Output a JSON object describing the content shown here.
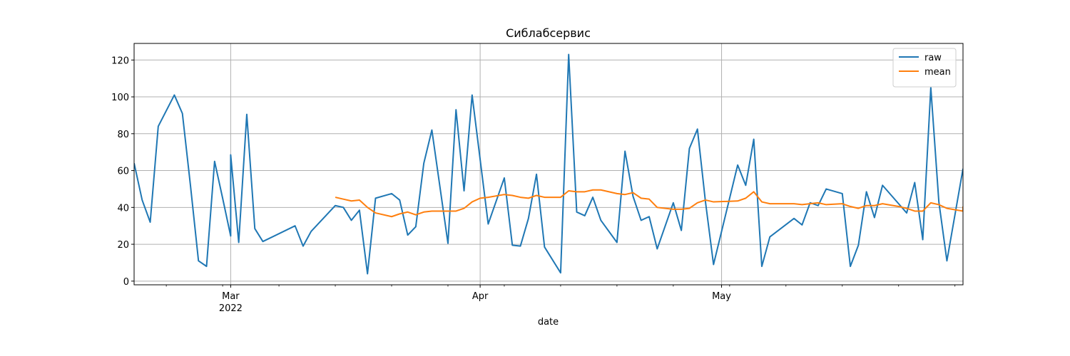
{
  "chart_data": {
    "type": "line",
    "title": "Сиблабсервис",
    "xlabel": "date",
    "ylabel": "",
    "ylim": [
      -2,
      129
    ],
    "xlim": [
      "2022-02-17",
      "2022-05-31"
    ],
    "yticks": [
      0,
      20,
      40,
      60,
      80,
      100,
      120
    ],
    "xticks": [
      {
        "date": "2022-03-01",
        "label": "Mar",
        "sublabel": "2022"
      },
      {
        "date": "2022-04-01",
        "label": "Apr",
        "sublabel": ""
      },
      {
        "date": "2022-05-01",
        "label": "May",
        "sublabel": ""
      }
    ],
    "grid": true,
    "legend_position": "top-right",
    "series": [
      {
        "name": "raw",
        "color": "#1f77b4",
        "points": [
          [
            "2022-02-17",
            64
          ],
          [
            "2022-02-18",
            44
          ],
          [
            "2022-02-19",
            32
          ],
          [
            "2022-02-20",
            84
          ],
          [
            "2022-02-22",
            101
          ],
          [
            "2022-02-23",
            91
          ],
          [
            "2022-02-24",
            52
          ],
          [
            "2022-02-25",
            11
          ],
          [
            "2022-02-26",
            8
          ],
          [
            "2022-02-27",
            65
          ],
          [
            "2022-02-28",
            45
          ],
          [
            "2022-03-01",
            24.5
          ],
          [
            "2022-03-01",
            68.5
          ],
          [
            "2022-03-02",
            21
          ],
          [
            "2022-03-03",
            90.5
          ],
          [
            "2022-03-04",
            28.5
          ],
          [
            "2022-03-05",
            21.5
          ],
          [
            "2022-03-09",
            30
          ],
          [
            "2022-03-10",
            19
          ],
          [
            "2022-03-11",
            27
          ],
          [
            "2022-03-14",
            41
          ],
          [
            "2022-03-15",
            40
          ],
          [
            "2022-03-16",
            33
          ],
          [
            "2022-03-17",
            38.5
          ],
          [
            "2022-03-18",
            4
          ],
          [
            "2022-03-19",
            45
          ],
          [
            "2022-03-21",
            47.5
          ],
          [
            "2022-03-22",
            44
          ],
          [
            "2022-03-23",
            25
          ],
          [
            "2022-03-24",
            29.5
          ],
          [
            "2022-03-25",
            64
          ],
          [
            "2022-03-26",
            82
          ],
          [
            "2022-03-28",
            20.5
          ],
          [
            "2022-03-29",
            93
          ],
          [
            "2022-03-30",
            49
          ],
          [
            "2022-03-31",
            101
          ],
          [
            "2022-04-02",
            31
          ],
          [
            "2022-04-04",
            56
          ],
          [
            "2022-04-05",
            19.5
          ],
          [
            "2022-04-06",
            19
          ],
          [
            "2022-04-07",
            34
          ],
          [
            "2022-04-08",
            58
          ],
          [
            "2022-04-09",
            18.5
          ],
          [
            "2022-04-11",
            4.5
          ],
          [
            "2022-04-12",
            123
          ],
          [
            "2022-04-13",
            37.5
          ],
          [
            "2022-04-14",
            35.5
          ],
          [
            "2022-04-15",
            45.5
          ],
          [
            "2022-04-16",
            33
          ],
          [
            "2022-04-18",
            21
          ],
          [
            "2022-04-19",
            70.5
          ],
          [
            "2022-04-20",
            46
          ],
          [
            "2022-04-21",
            33
          ],
          [
            "2022-04-22",
            35
          ],
          [
            "2022-04-23",
            17.5
          ],
          [
            "2022-04-25",
            42.5
          ],
          [
            "2022-04-26",
            27.5
          ],
          [
            "2022-04-27",
            72
          ],
          [
            "2022-04-28",
            82.5
          ],
          [
            "2022-04-29",
            43
          ],
          [
            "2022-04-30",
            9
          ],
          [
            "2022-05-03",
            63
          ],
          [
            "2022-05-04",
            52
          ],
          [
            "2022-05-05",
            77
          ],
          [
            "2022-05-06",
            8
          ],
          [
            "2022-05-07",
            24
          ],
          [
            "2022-05-10",
            34
          ],
          [
            "2022-05-11",
            30.5
          ],
          [
            "2022-05-12",
            42.5
          ],
          [
            "2022-05-13",
            41
          ],
          [
            "2022-05-14",
            50
          ],
          [
            "2022-05-16",
            47.5
          ],
          [
            "2022-05-17",
            8
          ],
          [
            "2022-05-18",
            19.5
          ],
          [
            "2022-05-19",
            48.5
          ],
          [
            "2022-05-20",
            34.5
          ],
          [
            "2022-05-21",
            52
          ],
          [
            "2022-05-23",
            42
          ],
          [
            "2022-05-24",
            37
          ],
          [
            "2022-05-25",
            53.5
          ],
          [
            "2022-05-26",
            22.5
          ],
          [
            "2022-05-27",
            105
          ],
          [
            "2022-05-28",
            43
          ],
          [
            "2022-05-29",
            11
          ],
          [
            "2022-05-31",
            61
          ]
        ]
      },
      {
        "name": "mean",
        "color": "#ff7f0e",
        "points": [
          [
            "2022-03-14",
            45.5
          ],
          [
            "2022-03-15",
            44.5
          ],
          [
            "2022-03-16",
            43.5
          ],
          [
            "2022-03-17",
            44
          ],
          [
            "2022-03-18",
            40
          ],
          [
            "2022-03-19",
            37
          ],
          [
            "2022-03-21",
            35
          ],
          [
            "2022-03-22",
            36.5
          ],
          [
            "2022-03-23",
            37.5
          ],
          [
            "2022-03-24",
            36
          ],
          [
            "2022-03-25",
            37.5
          ],
          [
            "2022-03-26",
            38
          ],
          [
            "2022-03-28",
            38
          ],
          [
            "2022-03-29",
            38
          ],
          [
            "2022-03-30",
            39.5
          ],
          [
            "2022-03-31",
            43
          ],
          [
            "2022-04-01",
            45
          ],
          [
            "2022-04-02",
            45.5
          ],
          [
            "2022-04-04",
            47
          ],
          [
            "2022-04-05",
            46.5
          ],
          [
            "2022-04-06",
            45.5
          ],
          [
            "2022-04-07",
            45
          ],
          [
            "2022-04-08",
            46.5
          ],
          [
            "2022-04-09",
            45.5
          ],
          [
            "2022-04-11",
            45.5
          ],
          [
            "2022-04-12",
            49
          ],
          [
            "2022-04-13",
            48.5
          ],
          [
            "2022-04-14",
            48.5
          ],
          [
            "2022-04-15",
            49.5
          ],
          [
            "2022-04-16",
            49.5
          ],
          [
            "2022-04-18",
            47.5
          ],
          [
            "2022-04-19",
            47
          ],
          [
            "2022-04-20",
            48
          ],
          [
            "2022-04-21",
            45
          ],
          [
            "2022-04-22",
            44.5
          ],
          [
            "2022-04-23",
            40
          ],
          [
            "2022-04-25",
            39
          ],
          [
            "2022-04-26",
            39
          ],
          [
            "2022-04-27",
            39.5
          ],
          [
            "2022-04-28",
            42.5
          ],
          [
            "2022-04-29",
            44
          ],
          [
            "2022-04-30",
            43
          ],
          [
            "2022-05-03",
            43.5
          ],
          [
            "2022-05-04",
            45
          ],
          [
            "2022-05-05",
            48.5
          ],
          [
            "2022-05-06",
            43
          ],
          [
            "2022-05-07",
            42
          ],
          [
            "2022-05-10",
            42
          ],
          [
            "2022-05-11",
            41.5
          ],
          [
            "2022-05-12",
            42
          ],
          [
            "2022-05-13",
            42.5
          ],
          [
            "2022-05-14",
            41.5
          ],
          [
            "2022-05-16",
            42
          ],
          [
            "2022-05-17",
            40.5
          ],
          [
            "2022-05-18",
            39.5
          ],
          [
            "2022-05-19",
            41
          ],
          [
            "2022-05-20",
            41
          ],
          [
            "2022-05-21",
            42
          ],
          [
            "2022-05-23",
            40.5
          ],
          [
            "2022-05-24",
            39.5
          ],
          [
            "2022-05-25",
            38
          ],
          [
            "2022-05-26",
            38
          ],
          [
            "2022-05-27",
            42.5
          ],
          [
            "2022-05-28",
            41.5
          ],
          [
            "2022-05-29",
            39.5
          ],
          [
            "2022-05-31",
            38
          ],
          [
            "2022-05-31",
            40.5
          ]
        ]
      }
    ]
  }
}
